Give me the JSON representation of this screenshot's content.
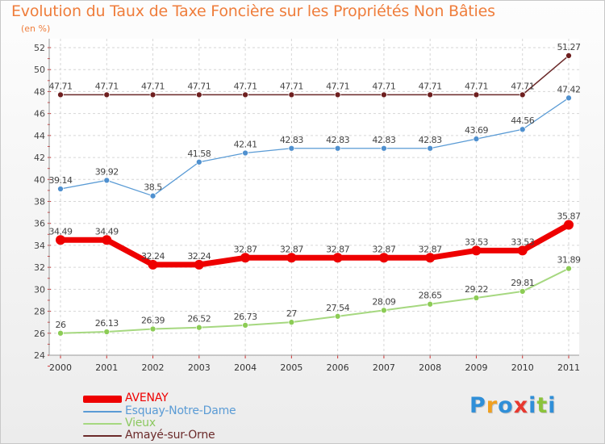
{
  "title": "Evolution du Taux de Taxe Foncière sur les Propriétés Non Bâties",
  "unit_label": "(en %)",
  "chart_data": {
    "type": "line",
    "title": "Evolution du Taux de Taxe Foncière sur les Propriétés Non Bâties",
    "ylabel": "(en %)",
    "xlabel": "",
    "x": [
      "2000",
      "2001",
      "2002",
      "2003",
      "2004",
      "2005",
      "2006",
      "2007",
      "2008",
      "2009",
      "2010",
      "2011"
    ],
    "ylim": [
      24,
      52
    ],
    "yticks": [
      24,
      26,
      28,
      30,
      32,
      34,
      36,
      38,
      40,
      42,
      44,
      46,
      48,
      50,
      52
    ],
    "grid": true,
    "series": [
      {
        "name": "Amayé-sur-Orne",
        "color": "#6b2a2a",
        "marker_color": "#6e1f1f",
        "values": [
          47.71,
          47.71,
          47.71,
          47.71,
          47.71,
          47.71,
          47.71,
          47.71,
          47.71,
          47.71,
          47.71,
          51.27
        ],
        "labels": [
          "47.71",
          "47.71",
          "47.71",
          "47.71",
          "47.71",
          "47.71",
          "47.71",
          "47.71",
          "47.71",
          "47.71",
          "47.71",
          "51.27"
        ]
      },
      {
        "name": "Esquay-Notre-Dame",
        "color": "#5a9bd5",
        "marker_color": "#4f90cf",
        "values": [
          39.14,
          39.92,
          38.5,
          41.58,
          42.41,
          42.83,
          42.83,
          42.83,
          42.83,
          43.69,
          44.56,
          47.42
        ],
        "labels": [
          "39.14",
          "39.92",
          "38.5",
          "41.58",
          "42.41",
          "42.83",
          "42.83",
          "42.83",
          "42.83",
          "43.69",
          "44.56",
          "47.42"
        ]
      },
      {
        "name": "AVENAY",
        "color": "#ee0000",
        "marker_color": "#ee0000",
        "values": [
          34.49,
          34.49,
          32.24,
          32.24,
          32.87,
          32.87,
          32.87,
          32.87,
          32.87,
          33.53,
          33.53,
          35.87
        ],
        "labels": [
          "34.49",
          "34.49",
          "32.24",
          "32.24",
          "32.87",
          "32.87",
          "32.87",
          "32.87",
          "32.87",
          "33.53",
          "33.53",
          "35.87"
        ]
      },
      {
        "name": "Vieux",
        "color": "#a6d880",
        "marker_color": "#8ccc55",
        "values": [
          26,
          26.13,
          26.39,
          26.52,
          26.73,
          27,
          27.54,
          28.09,
          28.65,
          29.22,
          29.81,
          31.89
        ],
        "labels": [
          "26",
          "26.13",
          "26.39",
          "26.52",
          "26.73",
          "27",
          "27.54",
          "28.09",
          "28.65",
          "29.22",
          "29.81",
          "31.89"
        ]
      }
    ]
  },
  "legend": [
    {
      "label": "AVENAY",
      "color": "#ee0000"
    },
    {
      "label": "Esquay-Notre-Dame",
      "color": "#5a9bd5"
    },
    {
      "label": "Vieux",
      "color": "#a6d880"
    },
    {
      "label": "Amayé-sur-Orne",
      "color": "#6b2a2a"
    }
  ],
  "logo": {
    "letters": [
      "P",
      "r",
      "o",
      "x",
      "i",
      "t",
      "i"
    ],
    "colors": [
      "#2f8fd8",
      "#f0a020",
      "#2f8fd8",
      "#e8382f",
      "#2f8fd8",
      "#8bc33a",
      "#2f8fd8"
    ]
  }
}
